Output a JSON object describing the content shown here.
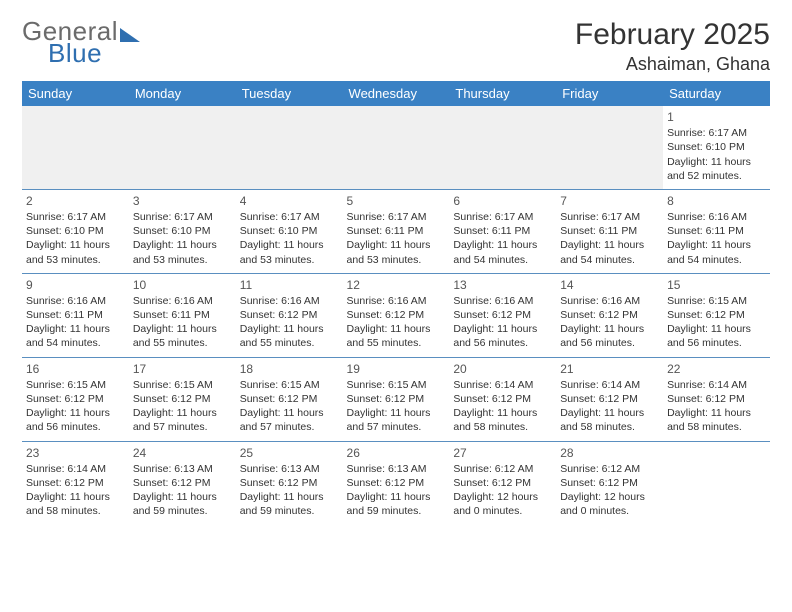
{
  "logo": {
    "word1": "General",
    "word2": "Blue"
  },
  "header": {
    "month_title": "February 2025",
    "location": "Ashaiman, Ghana"
  },
  "colors": {
    "header_bg": "#3a81c4",
    "header_text": "#ffffff",
    "row_divider": "#5a8fc0",
    "logo_gray": "#6b6b6b",
    "logo_blue": "#2f6fb0",
    "empty_bg": "#f0f0f0",
    "body_text": "#333333"
  },
  "typography": {
    "title_fontsize": 30,
    "location_fontsize": 18,
    "dayhead_fontsize": 13,
    "cell_fontsize": 10.5,
    "logo_fontsize": 26
  },
  "day_headers": [
    "Sunday",
    "Monday",
    "Tuesday",
    "Wednesday",
    "Thursday",
    "Friday",
    "Saturday"
  ],
  "weeks": [
    [
      null,
      null,
      null,
      null,
      null,
      null,
      {
        "n": "1",
        "sr": "Sunrise: 6:17 AM",
        "ss": "Sunset: 6:10 PM",
        "dl": "Daylight: 11 hours and 52 minutes."
      }
    ],
    [
      {
        "n": "2",
        "sr": "Sunrise: 6:17 AM",
        "ss": "Sunset: 6:10 PM",
        "dl": "Daylight: 11 hours and 53 minutes."
      },
      {
        "n": "3",
        "sr": "Sunrise: 6:17 AM",
        "ss": "Sunset: 6:10 PM",
        "dl": "Daylight: 11 hours and 53 minutes."
      },
      {
        "n": "4",
        "sr": "Sunrise: 6:17 AM",
        "ss": "Sunset: 6:10 PM",
        "dl": "Daylight: 11 hours and 53 minutes."
      },
      {
        "n": "5",
        "sr": "Sunrise: 6:17 AM",
        "ss": "Sunset: 6:11 PM",
        "dl": "Daylight: 11 hours and 53 minutes."
      },
      {
        "n": "6",
        "sr": "Sunrise: 6:17 AM",
        "ss": "Sunset: 6:11 PM",
        "dl": "Daylight: 11 hours and 54 minutes."
      },
      {
        "n": "7",
        "sr": "Sunrise: 6:17 AM",
        "ss": "Sunset: 6:11 PM",
        "dl": "Daylight: 11 hours and 54 minutes."
      },
      {
        "n": "8",
        "sr": "Sunrise: 6:16 AM",
        "ss": "Sunset: 6:11 PM",
        "dl": "Daylight: 11 hours and 54 minutes."
      }
    ],
    [
      {
        "n": "9",
        "sr": "Sunrise: 6:16 AM",
        "ss": "Sunset: 6:11 PM",
        "dl": "Daylight: 11 hours and 54 minutes."
      },
      {
        "n": "10",
        "sr": "Sunrise: 6:16 AM",
        "ss": "Sunset: 6:11 PM",
        "dl": "Daylight: 11 hours and 55 minutes."
      },
      {
        "n": "11",
        "sr": "Sunrise: 6:16 AM",
        "ss": "Sunset: 6:12 PM",
        "dl": "Daylight: 11 hours and 55 minutes."
      },
      {
        "n": "12",
        "sr": "Sunrise: 6:16 AM",
        "ss": "Sunset: 6:12 PM",
        "dl": "Daylight: 11 hours and 55 minutes."
      },
      {
        "n": "13",
        "sr": "Sunrise: 6:16 AM",
        "ss": "Sunset: 6:12 PM",
        "dl": "Daylight: 11 hours and 56 minutes."
      },
      {
        "n": "14",
        "sr": "Sunrise: 6:16 AM",
        "ss": "Sunset: 6:12 PM",
        "dl": "Daylight: 11 hours and 56 minutes."
      },
      {
        "n": "15",
        "sr": "Sunrise: 6:15 AM",
        "ss": "Sunset: 6:12 PM",
        "dl": "Daylight: 11 hours and 56 minutes."
      }
    ],
    [
      {
        "n": "16",
        "sr": "Sunrise: 6:15 AM",
        "ss": "Sunset: 6:12 PM",
        "dl": "Daylight: 11 hours and 56 minutes."
      },
      {
        "n": "17",
        "sr": "Sunrise: 6:15 AM",
        "ss": "Sunset: 6:12 PM",
        "dl": "Daylight: 11 hours and 57 minutes."
      },
      {
        "n": "18",
        "sr": "Sunrise: 6:15 AM",
        "ss": "Sunset: 6:12 PM",
        "dl": "Daylight: 11 hours and 57 minutes."
      },
      {
        "n": "19",
        "sr": "Sunrise: 6:15 AM",
        "ss": "Sunset: 6:12 PM",
        "dl": "Daylight: 11 hours and 57 minutes."
      },
      {
        "n": "20",
        "sr": "Sunrise: 6:14 AM",
        "ss": "Sunset: 6:12 PM",
        "dl": "Daylight: 11 hours and 58 minutes."
      },
      {
        "n": "21",
        "sr": "Sunrise: 6:14 AM",
        "ss": "Sunset: 6:12 PM",
        "dl": "Daylight: 11 hours and 58 minutes."
      },
      {
        "n": "22",
        "sr": "Sunrise: 6:14 AM",
        "ss": "Sunset: 6:12 PM",
        "dl": "Daylight: 11 hours and 58 minutes."
      }
    ],
    [
      {
        "n": "23",
        "sr": "Sunrise: 6:14 AM",
        "ss": "Sunset: 6:12 PM",
        "dl": "Daylight: 11 hours and 58 minutes."
      },
      {
        "n": "24",
        "sr": "Sunrise: 6:13 AM",
        "ss": "Sunset: 6:12 PM",
        "dl": "Daylight: 11 hours and 59 minutes."
      },
      {
        "n": "25",
        "sr": "Sunrise: 6:13 AM",
        "ss": "Sunset: 6:12 PM",
        "dl": "Daylight: 11 hours and 59 minutes."
      },
      {
        "n": "26",
        "sr": "Sunrise: 6:13 AM",
        "ss": "Sunset: 6:12 PM",
        "dl": "Daylight: 11 hours and 59 minutes."
      },
      {
        "n": "27",
        "sr": "Sunrise: 6:12 AM",
        "ss": "Sunset: 6:12 PM",
        "dl": "Daylight: 12 hours and 0 minutes."
      },
      {
        "n": "28",
        "sr": "Sunrise: 6:12 AM",
        "ss": "Sunset: 6:12 PM",
        "dl": "Daylight: 12 hours and 0 minutes."
      },
      null
    ]
  ]
}
